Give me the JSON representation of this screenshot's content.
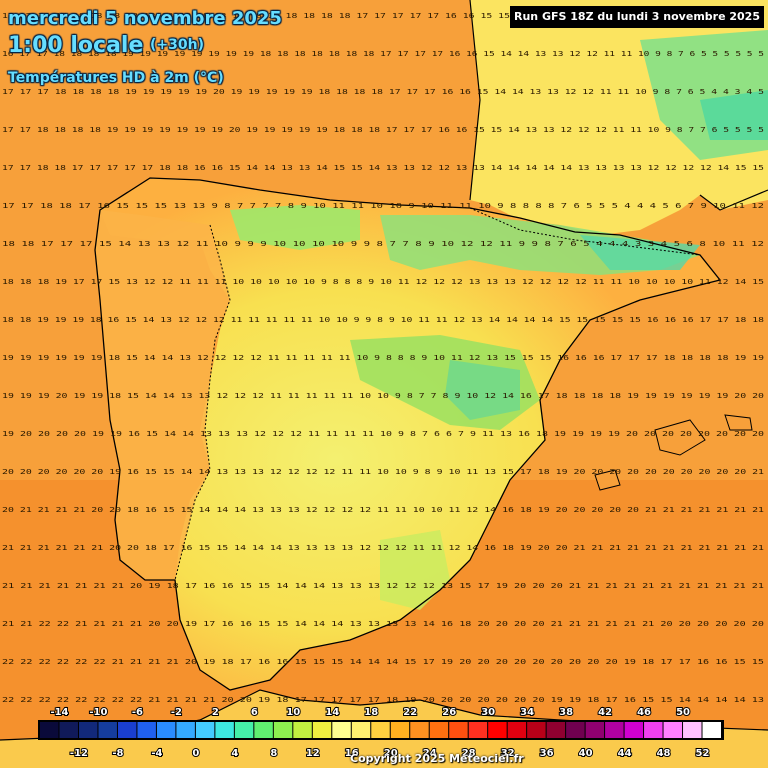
{
  "header": {
    "date_title": "mercredi 5 novembre 2025",
    "time_label": "1:00 locale",
    "lead_time": "(+30h)",
    "variable_title": "Températures HD à 2m (°C)"
  },
  "run_banner": "Run GFS 18Z du lundi 3 novembre 2025",
  "copyright": "Copyright 2025 Meteociel.fr",
  "scale": {
    "upper_labels": [
      "-14",
      "-10",
      "-6",
      "-2",
      "2",
      "6",
      "10",
      "14",
      "18",
      "22",
      "26",
      "30",
      "34",
      "38",
      "42",
      "46",
      "50"
    ],
    "lower_labels": [
      "-12",
      "-8",
      "-4",
      "0",
      "4",
      "8",
      "12",
      "16",
      "20",
      "24",
      "28",
      "32",
      "36",
      "40",
      "44",
      "48",
      "52"
    ],
    "colors": [
      "#0a0a3a",
      "#101a5a",
      "#12297a",
      "#153d9e",
      "#1a3fd0",
      "#2060f0",
      "#2a8cff",
      "#35aaff",
      "#44ccff",
      "#3ee8e0",
      "#45f0a8",
      "#60f070",
      "#8ef050",
      "#c0f040",
      "#f0f040",
      "#ffff90",
      "#fff070",
      "#ffd040",
      "#ffb020",
      "#ff9020",
      "#ff7010",
      "#ff5010",
      "#ff3020",
      "#ff0000",
      "#e00010",
      "#b80018",
      "#900030",
      "#700050",
      "#900070",
      "#b000a0",
      "#d000d0",
      "#f040f0",
      "#ff80ff",
      "#ffc0ff",
      "#ffffff"
    ]
  },
  "map": {
    "region": "Iberian Peninsula",
    "value_rows": [
      "17 17 17 17 18 18 18 18 18 18 18 18 18 18 18 18 18 18 18 18 17 17 17 17 17 16 16 15 15 14 13 13 12 12 11 10 9 8 7 7 6 6 6 7 7 7 7",
      "16 17 17 18 18 18 18 19 19 19 19 19 19 19 19 18 18 18 18 18 18 18 17 17 17 17 16 16 15 14 14 13 13 12 12 11 11 10 9 8 7 6 5 5 5 5 5 5",
      "17 17 17 18 18 18 18 19 19 19 19 19 20 19 19 19 19 19 18 18 18 18 17 17 17 16 16 15 14 14 13 13 12 12 11 11 10 9 8 7 6 5 4 4 3 4 5",
      "17 17 18 18 18 18 19 19 19 19 19 19 19 20 19 19 19 19 19 18 18 18 17 17 17 16 16 15 15 14 13 13 12 12 12 11 11 10 9 8 7 7 6 5 5 5 5",
      "17 17 18 18 17 17 17 17 17 18 18 16 16 15 14 14 13 13 14 15 15 14 13 13 12 12 13 13 14 14 14 14 14 13 13 13 13 12 12 12 12 14 15 15",
      "17 17 18 18 17 16 15 15 15 13 13 9 8 7 7 7 7 8 9 10 11 11 10 10 9 10 11 11 10 9 8 8 8 8 7 6 5 5 5 4 4 4 5 6 7 9 10 11 12",
      "18 18 17 17 17 15 14 13 13 12 11 10 9 9 9 10 10 10 10 9 9 8 7 7 8 9 10 12 12 11 9 9 8 7 6 5 4 4 4 3 3 4 5 6 8 10 11 12",
      "18 18 18 19 17 17 15 13 12 12 11 11 11 10 10 10 10 10 9 8 8 8 9 10 11 12 12 12 13 13 13 12 12 12 12 11 11 10 10 10 10 11 12 14 15",
      "18 18 19 19 19 18 16 15 14 13 12 12 12 11 11 11 11 11 10 10 9 9 8 9 10 11 11 12 13 14 14 14 14 15 15 15 15 15 16 16 16 17 17 18 18",
      "19 19 19 19 19 19 18 15 14 14 13 12 12 12 12 11 11 11 11 11 10 9 8 8 8 9 10 11 12 13 15 15 15 16 16 16 17 17 17 18 18 18 18 19 19",
      "19 19 19 20 19 19 18 15 14 14 13 13 12 12 12 11 11 11 11 11 10 10 9 8 7 7 8 9 10 12 14 16 17 18 18 18 18 19 19 19 19 19 19 20 20",
      "19 20 20 20 20 19 19 16 15 14 14 13 13 13 12 12 12 11 11 11 11 10 9 8 7 6 6 7 9 11 13 16 18 19 19 19 19 20 20 20 20 20 20 20 20",
      "20 20 20 20 20 20 19 16 15 15 14 14 13 13 13 12 12 12 12 11 11 10 10 9 8 9 10 11 13 15 17 18 19 20 20 20 20 20 20 20 20 20 20 21",
      "20 21 21 21 21 20 20 18 16 15 15 14 14 14 13 13 13 12 12 12 12 11 11 10 10 11 12 14 16 18 19 20 20 20 20 20 21 21 21 21 21 21 21",
      "21 21 21 21 21 21 20 20 18 17 16 15 15 14 14 14 13 13 13 13 12 12 12 11 11 12 14 16 18 19 20 20 21 21 21 21 21 21 21 21 21 21 21",
      "21 21 21 21 21 21 21 20 19 18 17 16 16 15 15 14 14 14 13 13 13 12 12 12 13 15 17 19 20 20 20 21 21 21 21 21 21 21 21 21 21 21",
      "21 21 22 22 21 21 21 21 20 20 19 17 16 16 15 15 14 14 14 13 13 13 13 14 16 18 20 20 20 20 21 21 21 21 21 21 20 20 20 20 20 20",
      "22 22 22 22 22 22 21 21 21 21 20 19 18 17 16 16 15 15 15 14 14 14 15 17 19 20 20 20 20 20 20 20 20 20 19 18 17 17 16 16 15 15",
      "22 22 22 22 22 22 22 22 21 21 21 21 20 20 19 18 17 17 17 17 17 18 19 20 20 20 20 20 20 20 19 19 18 17 16 15 15 14 14 14 14 13"
    ]
  }
}
